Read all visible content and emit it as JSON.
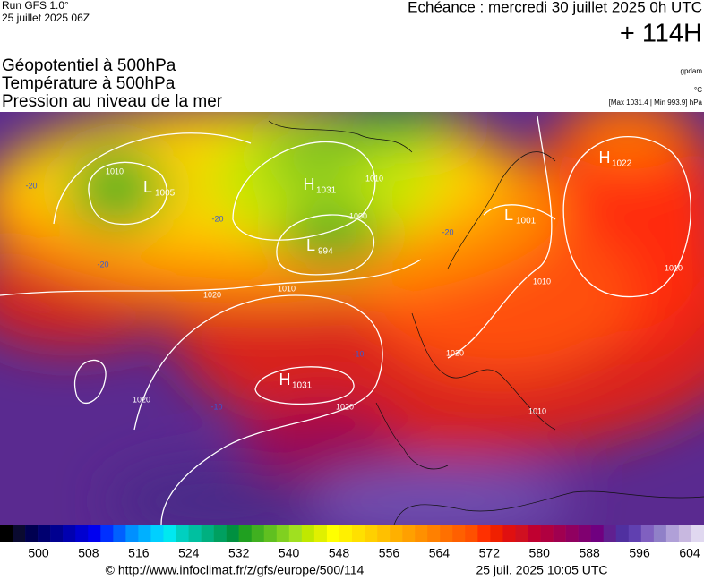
{
  "header": {
    "run": "Run GFS 1.0°",
    "run_date": "25 juillet 2025 06Z",
    "valid": "Echéance : mercredi 30 juillet 2025 0h UTC",
    "lead": "+ 114H",
    "fields": [
      "Géopotentiel à 500hPa",
      "Température à 500hPa",
      "Pression au niveau de la mer"
    ],
    "unit_geo": "gpdam",
    "unit_temp": "°C",
    "range": "[Max 1031.4 | Min 993.9] hPa"
  },
  "map": {
    "centers": [
      {
        "letter": "L",
        "value": 1005
      },
      {
        "letter": "H",
        "value": 1031
      },
      {
        "letter": "L",
        "value": 994
      },
      {
        "letter": "L",
        "value": 1001
      },
      {
        "letter": "H",
        "value": 1022
      },
      {
        "letter": "H",
        "value": 1031
      }
    ],
    "isobars": [
      1010,
      1020,
      1010,
      1000,
      1010,
      1020,
      1020,
      1020,
      1010,
      1010,
      1010
    ],
    "temps": [
      -20,
      -20,
      -20,
      -20,
      -10,
      -10
    ]
  },
  "colorbar": {
    "ticks": [
      500,
      508,
      516,
      524,
      532,
      540,
      548,
      556,
      564,
      572,
      580,
      588,
      596,
      604
    ],
    "colors": [
      "#000000",
      "#0a0a30",
      "#000050",
      "#000070",
      "#000090",
      "#0000b0",
      "#0000d0",
      "#0000f0",
      "#0030ff",
      "#0060ff",
      "#0090ff",
      "#00b0ff",
      "#00d0ff",
      "#00e8f0",
      "#00d0c0",
      "#00c0a0",
      "#00b080",
      "#00a060",
      "#009040",
      "#20a020",
      "#40b020",
      "#60c020",
      "#80d020",
      "#a0e020",
      "#c0e800",
      "#e0f000",
      "#ffff00",
      "#fff000",
      "#ffe000",
      "#ffd000",
      "#ffc000",
      "#ffb000",
      "#ffa000",
      "#ff9000",
      "#ff8000",
      "#ff7000",
      "#ff6000",
      "#ff5000",
      "#ff3000",
      "#f02000",
      "#e01010",
      "#d01020",
      "#c00030",
      "#b00040",
      "#a00050",
      "#900060",
      "#800070",
      "#700080",
      "#602090",
      "#5030a0",
      "#6040b0",
      "#8060c0",
      "#9080c8",
      "#b0a0d8",
      "#c8b8e0",
      "#e0d8f0"
    ]
  },
  "footer": {
    "source": "© http://www.infoclimat.fr/z/gfs/europe/500/114",
    "stamp": "25 juil. 2025 10:05 UTC"
  }
}
